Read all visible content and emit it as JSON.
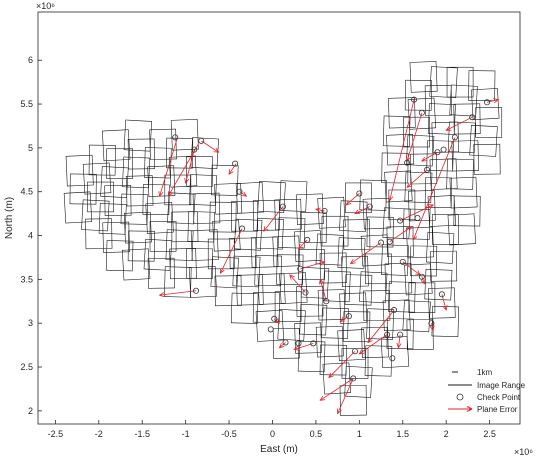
{
  "chart_data": {
    "type": "scatter",
    "title": "",
    "xlabel": "East (m)",
    "ylabel": "North (m)",
    "x_exponent": "×10⁶",
    "y_exponent": "×10⁶",
    "xlim": [
      -2.7,
      2.85
    ],
    "ylim": [
      1.85,
      6.55
    ],
    "xticks": [
      -2.5,
      -2,
      -1.5,
      -1,
      -0.5,
      0,
      0.5,
      1,
      1.5,
      2,
      2.5
    ],
    "xtick_labels": [
      "-2.5",
      "-2",
      "-1.5",
      "-1",
      "-0.5",
      "0",
      "0.5",
      "1",
      "1.5",
      "2",
      "2.5"
    ],
    "yticks": [
      2,
      2.5,
      3,
      3.5,
      4,
      4.5,
      5,
      5.5,
      6
    ],
    "ytick_labels": [
      "2",
      "2.5",
      "3",
      "3.5",
      "4",
      "4.5",
      "5",
      "5.5",
      "6"
    ],
    "grid": false,
    "legend_position": "bottom-right",
    "legend": {
      "scale_label": "1km",
      "items": [
        "Image Range",
        "Check Point",
        "Plane Error"
      ]
    },
    "colors": {
      "image_range": "#1a1a1a",
      "check_point": "#333333",
      "plane_error": "#e8212a"
    },
    "image_strips": [
      {
        "x": -2.2,
        "y_min": 4.15,
        "y_max": 5.0
      },
      {
        "x": -2.0,
        "y_min": 3.85,
        "y_max": 5.1
      },
      {
        "x": -1.8,
        "y_min": 3.6,
        "y_max": 5.3
      },
      {
        "x": -1.55,
        "y_min": 3.5,
        "y_max": 5.4
      },
      {
        "x": -1.3,
        "y_min": 3.4,
        "y_max": 5.4
      },
      {
        "x": -1.05,
        "y_min": 3.3,
        "y_max": 5.4
      },
      {
        "x": -0.8,
        "y_min": 3.3,
        "y_max": 5.3
      },
      {
        "x": -0.55,
        "y_min": 3.2,
        "y_max": 5.0
      },
      {
        "x": -0.3,
        "y_min": 3.0,
        "y_max": 4.8
      },
      {
        "x": -0.05,
        "y_min": 2.8,
        "y_max": 4.7
      },
      {
        "x": 0.2,
        "y_min": 2.6,
        "y_max": 4.65
      },
      {
        "x": 0.45,
        "y_min": 2.45,
        "y_max": 4.6
      },
      {
        "x": 0.7,
        "y_min": 2.2,
        "y_max": 4.55
      },
      {
        "x": 0.95,
        "y_min": 1.95,
        "y_max": 4.6
      },
      {
        "x": 1.2,
        "y_min": 2.4,
        "y_max": 4.7
      },
      {
        "x": 1.45,
        "y_min": 2.5,
        "y_max": 5.7
      },
      {
        "x": 1.7,
        "y_min": 2.7,
        "y_max": 6.0
      },
      {
        "x": 1.95,
        "y_min": 2.85,
        "y_max": 6.1
      },
      {
        "x": 2.2,
        "y_min": 3.9,
        "y_max": 6.05
      },
      {
        "x": 2.45,
        "y_min": 4.7,
        "y_max": 5.95
      }
    ],
    "check_points": [
      {
        "x": -1.12,
        "y": 5.12
      },
      {
        "x": -0.82,
        "y": 5.08
      },
      {
        "x": -0.9,
        "y": 4.98
      },
      {
        "x": -0.43,
        "y": 4.82
      },
      {
        "x": -0.38,
        "y": 4.5
      },
      {
        "x": 0.12,
        "y": 4.33
      },
      {
        "x": -0.35,
        "y": 4.08
      },
      {
        "x": -0.88,
        "y": 3.37
      },
      {
        "x": 0.6,
        "y": 4.28
      },
      {
        "x": 0.4,
        "y": 3.95
      },
      {
        "x": 0.32,
        "y": 3.62
      },
      {
        "x": 0.38,
        "y": 3.35
      },
      {
        "x": 0.62,
        "y": 3.25
      },
      {
        "x": 0.02,
        "y": 3.05
      },
      {
        "x": -0.02,
        "y": 2.93
      },
      {
        "x": 0.15,
        "y": 2.78
      },
      {
        "x": 0.3,
        "y": 2.77
      },
      {
        "x": 0.47,
        "y": 2.77
      },
      {
        "x": 0.88,
        "y": 3.08
      },
      {
        "x": 0.95,
        "y": 2.68
      },
      {
        "x": 0.93,
        "y": 2.37
      },
      {
        "x": 1.0,
        "y": 4.48
      },
      {
        "x": 1.12,
        "y": 4.33
      },
      {
        "x": 1.25,
        "y": 3.92
      },
      {
        "x": 1.35,
        "y": 3.93
      },
      {
        "x": 1.47,
        "y": 4.17
      },
      {
        "x": 1.5,
        "y": 3.7
      },
      {
        "x": 1.4,
        "y": 3.15
      },
      {
        "x": 1.32,
        "y": 2.87
      },
      {
        "x": 1.47,
        "y": 2.87
      },
      {
        "x": 1.38,
        "y": 2.6
      },
      {
        "x": 1.63,
        "y": 5.55
      },
      {
        "x": 1.72,
        "y": 5.4
      },
      {
        "x": 1.78,
        "y": 4.75
      },
      {
        "x": 1.9,
        "y": 4.95
      },
      {
        "x": 1.55,
        "y": 4.83
      },
      {
        "x": 1.67,
        "y": 4.2
      },
      {
        "x": 1.72,
        "y": 3.53
      },
      {
        "x": 1.83,
        "y": 3.0
      },
      {
        "x": 1.95,
        "y": 3.33
      },
      {
        "x": 2.1,
        "y": 5.12
      },
      {
        "x": 2.3,
        "y": 5.35
      },
      {
        "x": 2.47,
        "y": 5.52
      },
      {
        "x": 1.97,
        "y": 4.98
      }
    ],
    "plane_errors": [
      {
        "x": -1.1,
        "y": 5.1,
        "x2": -1.3,
        "y2": 4.45
      },
      {
        "x": -0.85,
        "y": 5.05,
        "x2": -1.2,
        "y2": 4.45
      },
      {
        "x": -0.9,
        "y": 4.98,
        "x2": -1.0,
        "y2": 4.6
      },
      {
        "x": -0.82,
        "y": 5.08,
        "x2": -0.62,
        "y2": 4.95
      },
      {
        "x": -0.42,
        "y": 4.82,
        "x2": -0.5,
        "y2": 4.7
      },
      {
        "x": -0.38,
        "y": 4.5,
        "x2": -0.3,
        "y2": 4.45
      },
      {
        "x": 0.12,
        "y": 4.33,
        "x2": -0.1,
        "y2": 4.05
      },
      {
        "x": -0.35,
        "y": 4.08,
        "x2": -0.6,
        "y2": 3.57
      },
      {
        "x": -0.88,
        "y": 3.37,
        "x2": -1.3,
        "y2": 3.32
      },
      {
        "x": 0.6,
        "y": 4.28,
        "x2": 0.5,
        "y2": 4.3
      },
      {
        "x": 0.4,
        "y": 3.95,
        "x2": 0.3,
        "y2": 3.85
      },
      {
        "x": 0.32,
        "y": 3.62,
        "x2": 0.6,
        "y2": 3.7
      },
      {
        "x": 0.38,
        "y": 3.35,
        "x2": 0.2,
        "y2": 3.55
      },
      {
        "x": 0.62,
        "y": 3.25,
        "x2": 0.55,
        "y2": 3.5
      },
      {
        "x": 0.02,
        "y": 3.05,
        "x2": 0.08,
        "y2": 3.0
      },
      {
        "x": 0.15,
        "y": 2.78,
        "x2": 0.08,
        "y2": 2.72
      },
      {
        "x": 0.47,
        "y": 2.77,
        "x2": 0.25,
        "y2": 2.7
      },
      {
        "x": 0.88,
        "y": 3.08,
        "x2": 0.78,
        "y2": 3.02
      },
      {
        "x": 0.95,
        "y": 2.68,
        "x2": 0.65,
        "y2": 2.38
      },
      {
        "x": 0.93,
        "y": 2.37,
        "x2": 0.75,
        "y2": 1.97
      },
      {
        "x": 0.93,
        "y": 2.37,
        "x2": 0.55,
        "y2": 2.12
      },
      {
        "x": 1.0,
        "y": 4.48,
        "x2": 0.85,
        "y2": 4.35
      },
      {
        "x": 1.12,
        "y": 4.33,
        "x2": 0.95,
        "y2": 4.25
      },
      {
        "x": 1.25,
        "y": 3.92,
        "x2": 0.9,
        "y2": 3.68
      },
      {
        "x": 1.35,
        "y": 3.93,
        "x2": 1.6,
        "y2": 4.1
      },
      {
        "x": 1.47,
        "y": 4.17,
        "x2": 1.85,
        "y2": 4.35
      },
      {
        "x": 1.5,
        "y": 3.7,
        "x2": 1.7,
        "y2": 3.55
      },
      {
        "x": 1.4,
        "y": 3.15,
        "x2": 1.1,
        "y2": 2.78
      },
      {
        "x": 1.32,
        "y": 2.87,
        "x2": 1.0,
        "y2": 2.65
      },
      {
        "x": 1.47,
        "y": 2.87,
        "x2": 1.45,
        "y2": 2.72
      },
      {
        "x": 1.63,
        "y": 5.55,
        "x2": 1.35,
        "y2": 4.4
      },
      {
        "x": 1.72,
        "y": 5.4,
        "x2": 1.55,
        "y2": 4.85
      },
      {
        "x": 1.78,
        "y": 4.75,
        "x2": 1.55,
        "y2": 4.55
      },
      {
        "x": 1.9,
        "y": 4.95,
        "x2": 1.72,
        "y2": 4.85
      },
      {
        "x": 2.1,
        "y": 5.12,
        "x2": 1.62,
        "y2": 3.95
      },
      {
        "x": 2.3,
        "y": 5.35,
        "x2": 2.0,
        "y2": 5.2
      },
      {
        "x": 2.47,
        "y": 5.52,
        "x2": 2.6,
        "y2": 5.55
      },
      {
        "x": 1.95,
        "y": 3.33,
        "x2": 2.0,
        "y2": 3.15
      },
      {
        "x": 1.83,
        "y": 3.0,
        "x2": 1.85,
        "y2": 2.92
      },
      {
        "x": 1.72,
        "y": 3.53,
        "x2": 1.75,
        "y2": 3.45
      }
    ]
  }
}
